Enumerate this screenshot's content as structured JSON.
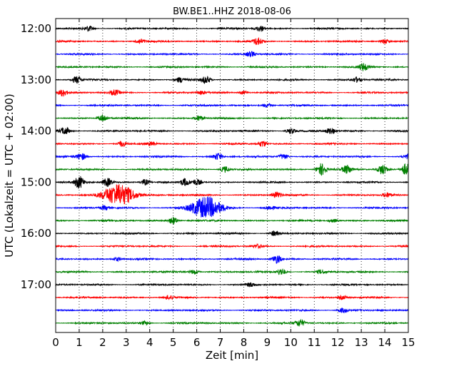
{
  "chart_data": {
    "type": "line",
    "title": "BW.BE1..HHZ 2018-08-06",
    "xlabel": "Zeit  [min]",
    "ylabel": "UTC (Lokalzeit = UTC + 02:00)",
    "xlim": [
      0,
      15
    ],
    "x_ticks": [
      "0",
      "1",
      "2",
      "3",
      "4",
      "5",
      "6",
      "7",
      "8",
      "9",
      "10",
      "11",
      "12",
      "13",
      "14",
      "15"
    ],
    "y_ticks": [
      "12:00",
      "13:00",
      "14:00",
      "15:00",
      "16:00",
      "17:00"
    ],
    "grid": "vertical dotted lines at each minute",
    "colors": [
      "#000000",
      "#ff0000",
      "#0000ff",
      "#008000"
    ],
    "series": [
      {
        "start": "12:00",
        "events": [
          [
            1.4,
            0.45
          ],
          [
            8.7,
            0.45
          ]
        ]
      },
      {
        "start": "12:15",
        "events": [
          [
            3.6,
            0.4
          ],
          [
            8.6,
            0.55
          ],
          [
            14.0,
            0.4
          ]
        ]
      },
      {
        "start": "12:30",
        "events": [
          [
            8.3,
            0.45
          ]
        ]
      },
      {
        "start": "12:45",
        "events": [
          [
            13.1,
            0.6
          ]
        ]
      },
      {
        "start": "13:00",
        "events": [
          [
            0.9,
            0.6
          ],
          [
            5.3,
            0.4
          ],
          [
            6.4,
            0.6
          ],
          [
            12.8,
            0.4
          ]
        ]
      },
      {
        "start": "13:15",
        "events": [
          [
            0.3,
            0.6
          ],
          [
            2.5,
            0.4
          ],
          [
            6.2,
            0.3
          ],
          [
            8.0,
            0.3
          ]
        ]
      },
      {
        "start": "13:30",
        "events": [
          [
            9.0,
            0.35
          ]
        ]
      },
      {
        "start": "13:45",
        "events": [
          [
            2.0,
            0.6
          ],
          [
            6.1,
            0.45
          ]
        ]
      },
      {
        "start": "14:00",
        "events": [
          [
            0.4,
            0.6
          ],
          [
            10.0,
            0.45
          ],
          [
            11.7,
            0.55
          ]
        ]
      },
      {
        "start": "14:15",
        "events": [
          [
            2.8,
            0.45
          ],
          [
            8.8,
            0.5
          ],
          [
            4.1,
            0.3
          ]
        ]
      },
      {
        "start": "14:30",
        "events": [
          [
            1.1,
            0.55
          ],
          [
            6.9,
            0.55
          ],
          [
            9.7,
            0.45
          ],
          [
            15.0,
            0.45
          ]
        ]
      },
      {
        "start": "14:45",
        "events": [
          [
            7.2,
            0.5
          ],
          [
            11.3,
            1.0
          ],
          [
            12.4,
            0.7
          ],
          [
            13.9,
            0.8
          ],
          [
            14.9,
            1.0
          ]
        ]
      },
      {
        "start": "15:00",
        "events": [
          [
            1.0,
            1.0
          ],
          [
            2.2,
            0.7
          ],
          [
            3.8,
            0.5
          ],
          [
            5.5,
            0.6
          ],
          [
            6.0,
            0.5
          ]
        ]
      },
      {
        "start": "15:15",
        "events": [
          [
            2.7,
            1.8
          ],
          [
            9.4,
            0.5
          ],
          [
            14.1,
            0.35
          ]
        ]
      },
      {
        "start": "15:30",
        "events": [
          [
            6.4,
            1.8
          ],
          [
            2.1,
            0.35
          ],
          [
            9.1,
            0.3
          ]
        ]
      },
      {
        "start": "15:45",
        "events": [
          [
            5.0,
            0.6
          ],
          [
            11.8,
            0.3
          ]
        ]
      },
      {
        "start": "16:00",
        "events": [
          [
            9.3,
            0.4
          ]
        ]
      },
      {
        "start": "16:15",
        "events": [
          [
            8.6,
            0.3
          ]
        ]
      },
      {
        "start": "16:30",
        "events": [
          [
            9.4,
            0.7
          ],
          [
            2.6,
            0.3
          ]
        ]
      },
      {
        "start": "16:45",
        "events": [
          [
            5.9,
            0.4
          ],
          [
            9.6,
            0.55
          ],
          [
            11.3,
            0.3
          ]
        ]
      },
      {
        "start": "17:00",
        "events": [
          [
            8.3,
            0.3
          ]
        ]
      },
      {
        "start": "17:15",
        "events": [
          [
            4.8,
            0.3
          ],
          [
            12.2,
            0.3
          ]
        ]
      },
      {
        "start": "17:30",
        "events": [
          [
            12.2,
            0.4
          ]
        ]
      },
      {
        "start": "17:45",
        "events": [
          [
            10.4,
            0.6
          ],
          [
            3.8,
            0.3
          ]
        ]
      }
    ]
  }
}
